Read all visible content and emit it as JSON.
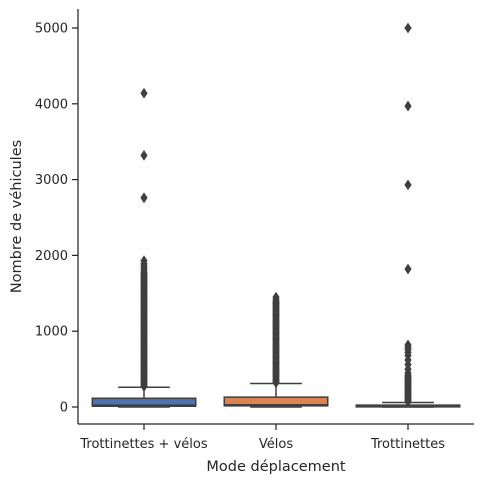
{
  "chart_data": {
    "type": "box",
    "xlabel": "Mode déplacement",
    "ylabel": "Nombre de véhicules",
    "ylim": [
      -250,
      5250
    ],
    "yticks": [
      0,
      1000,
      2000,
      3000,
      4000,
      5000
    ],
    "grid": false,
    "categories": [
      "Trottinettes + vélos",
      "Vélos",
      "Trottinettes"
    ],
    "boxes": [
      {
        "category": "Trottinettes + vélos",
        "color": "#4c72b0",
        "whisker_low": 0,
        "q1": 10,
        "median": 25,
        "q3": 115,
        "whisker_high": 260,
        "outlier_band": [
          270,
          1780
        ],
        "outliers": [
          1800,
          1830,
          1860,
          1890,
          1930,
          2760,
          3320,
          4140
        ]
      },
      {
        "category": "Vélos",
        "color": "#dd8452",
        "whisker_low": 0,
        "q1": 15,
        "median": 30,
        "q3": 130,
        "whisker_high": 310,
        "outlier_band": [
          320,
          1400
        ],
        "outliers": [
          1420,
          1450
        ]
      },
      {
        "category": "Trottinettes",
        "color": "#55a868",
        "whisker_low": 0,
        "q1": 2,
        "median": 5,
        "q3": 25,
        "whisker_high": 60,
        "outlier_band": [
          70,
          420
        ],
        "outliers": [
          450,
          500,
          560,
          620,
          680,
          720,
          760,
          790,
          820,
          1820,
          2930,
          3970,
          5000
        ]
      }
    ]
  }
}
